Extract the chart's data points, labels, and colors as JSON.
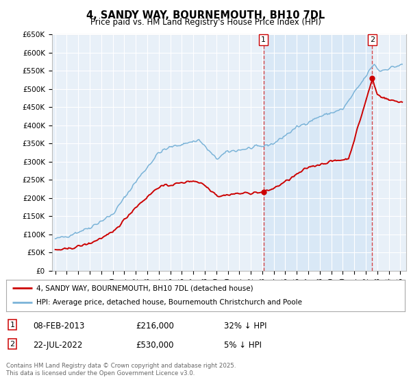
{
  "title": "4, SANDY WAY, BOURNEMOUTH, BH10 7DL",
  "subtitle": "Price paid vs. HM Land Registry's House Price Index (HPI)",
  "ylabel_ticks": [
    "£0",
    "£50K",
    "£100K",
    "£150K",
    "£200K",
    "£250K",
    "£300K",
    "£350K",
    "£400K",
    "£450K",
    "£500K",
    "£550K",
    "£600K",
    "£650K"
  ],
  "ylim": [
    0,
    650000
  ],
  "xlim_start": 1994.7,
  "xlim_end": 2025.5,
  "plot_bg": "#e8f0f8",
  "grid_color": "#ffffff",
  "hpi_color": "#7ab3d8",
  "price_color": "#cc0000",
  "shade_color": "#d0e4f5",
  "sale1_date": 2013.1,
  "sale1_price": 216000,
  "sale2_date": 2022.55,
  "sale2_price": 530000,
  "legend_line1": "4, SANDY WAY, BOURNEMOUTH, BH10 7DL (detached house)",
  "legend_line2": "HPI: Average price, detached house, Bournemouth Christchurch and Poole",
  "table_row1_label": "1",
  "table_row1_date": "08-FEB-2013",
  "table_row1_price": "£216,000",
  "table_row1_hpi": "32% ↓ HPI",
  "table_row2_label": "2",
  "table_row2_date": "22-JUL-2022",
  "table_row2_price": "£530,000",
  "table_row2_hpi": "5% ↓ HPI",
  "footer": "Contains HM Land Registry data © Crown copyright and database right 2025.\nThis data is licensed under the Open Government Licence v3.0."
}
